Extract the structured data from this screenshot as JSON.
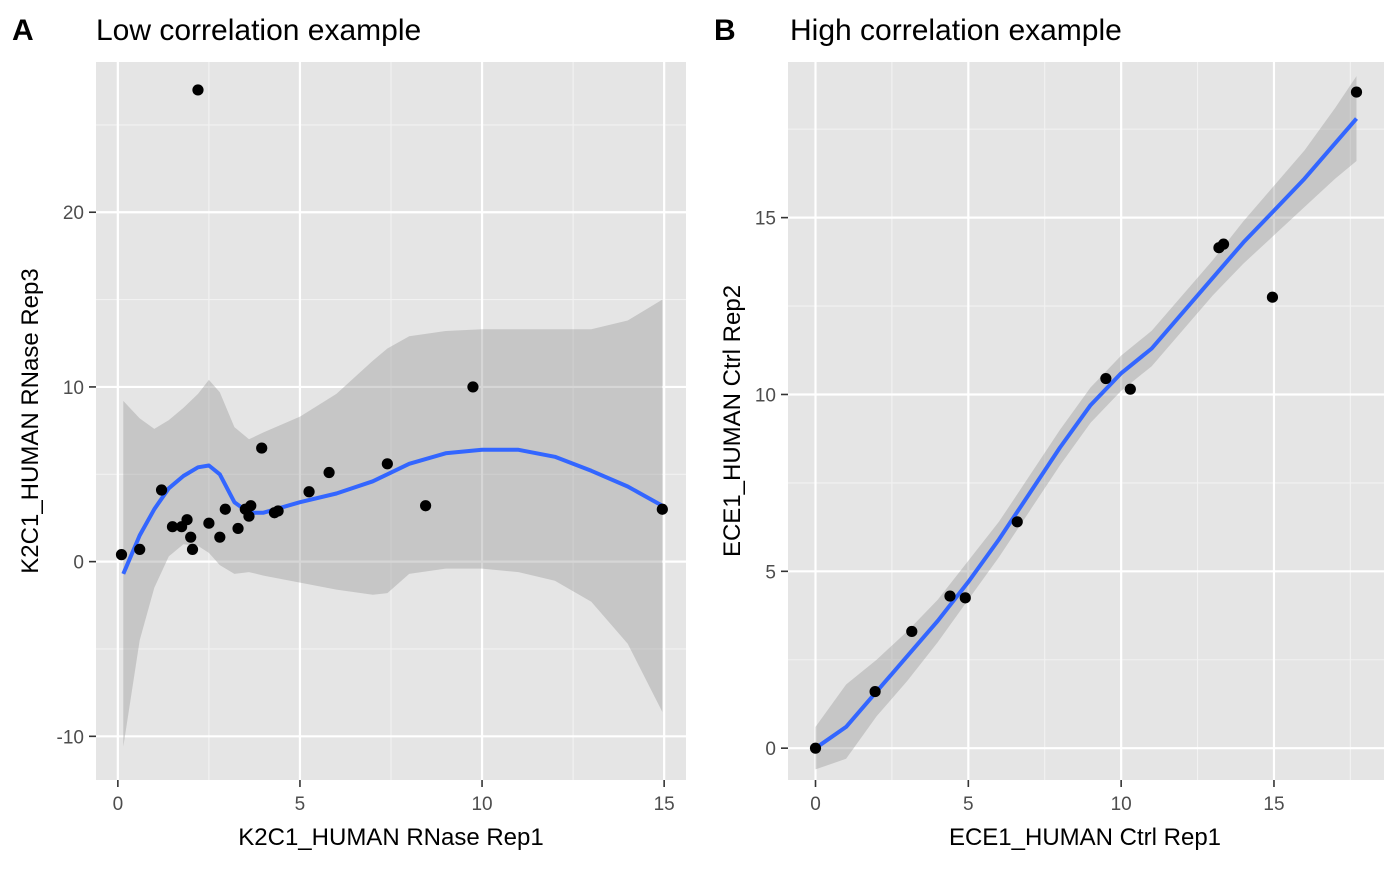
{
  "colors": {
    "panel_bg": "#e5e5e5",
    "grid_major": "#ffffff",
    "grid_minor": "#f2f2f2",
    "ribbon": "#999999",
    "smooth_line": "#3366ff",
    "point": "#000000",
    "tick_text": "#4d4d4d",
    "text": "#000000"
  },
  "chart_data": [
    {
      "type": "scatter",
      "panel_tag": "A",
      "title": "Low correlation example",
      "xlabel": "K2C1_HUMAN RNase Rep1",
      "ylabel": "K2C1_HUMAN RNase Rep3",
      "xlim": [
        -0.6,
        15.6
      ],
      "ylim": [
        -12.5,
        28.6
      ],
      "x_ticks": [
        0,
        5,
        10,
        15
      ],
      "x_tick_labels": [
        "0",
        "5",
        "10",
        "15"
      ],
      "y_ticks": [
        -10,
        0,
        10,
        20
      ],
      "y_tick_labels": [
        "-10",
        "0",
        "10",
        "20"
      ],
      "grid": true,
      "points": [
        {
          "x": 0.1,
          "y": 0.4
        },
        {
          "x": 0.6,
          "y": 0.7
        },
        {
          "x": 1.2,
          "y": 4.1
        },
        {
          "x": 1.5,
          "y": 2.0
        },
        {
          "x": 1.75,
          "y": 2.0
        },
        {
          "x": 1.9,
          "y": 2.4
        },
        {
          "x": 2.0,
          "y": 1.4
        },
        {
          "x": 2.05,
          "y": 0.7
        },
        {
          "x": 2.2,
          "y": 27.0
        },
        {
          "x": 2.5,
          "y": 2.2
        },
        {
          "x": 2.8,
          "y": 1.4
        },
        {
          "x": 2.95,
          "y": 3.0
        },
        {
          "x": 3.3,
          "y": 1.9
        },
        {
          "x": 3.5,
          "y": 3.0
        },
        {
          "x": 3.6,
          "y": 2.6
        },
        {
          "x": 3.65,
          "y": 3.2
        },
        {
          "x": 3.95,
          "y": 6.5
        },
        {
          "x": 4.3,
          "y": 2.8
        },
        {
          "x": 4.4,
          "y": 2.9
        },
        {
          "x": 5.25,
          "y": 4.0
        },
        {
          "x": 5.8,
          "y": 5.1
        },
        {
          "x": 7.4,
          "y": 5.6
        },
        {
          "x": 8.45,
          "y": 3.2
        },
        {
          "x": 9.75,
          "y": 10.0
        },
        {
          "x": 14.95,
          "y": 3.0
        }
      ],
      "smooth": [
        {
          "x": 0.15,
          "y": -0.7,
          "ymin": -10.6,
          "ymax": 9.2
        },
        {
          "x": 0.6,
          "y": 1.5,
          "ymin": -4.5,
          "ymax": 8.2
        },
        {
          "x": 1.0,
          "y": 3.0,
          "ymin": -1.5,
          "ymax": 7.6
        },
        {
          "x": 1.4,
          "y": 4.2,
          "ymin": 0.3,
          "ymax": 8.1
        },
        {
          "x": 1.8,
          "y": 4.9,
          "ymin": 1.0,
          "ymax": 8.8
        },
        {
          "x": 2.2,
          "y": 5.4,
          "ymin": 0.9,
          "ymax": 9.6
        },
        {
          "x": 2.5,
          "y": 5.5,
          "ymin": 0.5,
          "ymax": 10.4
        },
        {
          "x": 2.8,
          "y": 5.0,
          "ymin": -0.2,
          "ymax": 9.7
        },
        {
          "x": 3.2,
          "y": 3.4,
          "ymin": -0.7,
          "ymax": 7.7
        },
        {
          "x": 3.6,
          "y": 2.8,
          "ymin": -0.6,
          "ymax": 7.0
        },
        {
          "x": 4.0,
          "y": 2.8,
          "ymin": -0.8,
          "ymax": 7.4
        },
        {
          "x": 5.0,
          "y": 3.4,
          "ymin": -1.2,
          "ymax": 8.3
        },
        {
          "x": 6.0,
          "y": 3.9,
          "ymin": -1.6,
          "ymax": 9.6
        },
        {
          "x": 7.0,
          "y": 4.6,
          "ymin": -1.9,
          "ymax": 11.5
        },
        {
          "x": 7.4,
          "y": 5.0,
          "ymin": -1.8,
          "ymax": 12.2
        },
        {
          "x": 8.0,
          "y": 5.6,
          "ymin": -0.7,
          "ymax": 12.9
        },
        {
          "x": 9.0,
          "y": 6.2,
          "ymin": -0.4,
          "ymax": 13.2
        },
        {
          "x": 10.0,
          "y": 6.4,
          "ymin": -0.4,
          "ymax": 13.3
        },
        {
          "x": 11.0,
          "y": 6.4,
          "ymin": -0.6,
          "ymax": 13.3
        },
        {
          "x": 12.0,
          "y": 6.0,
          "ymin": -1.1,
          "ymax": 13.3
        },
        {
          "x": 13.0,
          "y": 5.2,
          "ymin": -2.3,
          "ymax": 13.3
        },
        {
          "x": 14.0,
          "y": 4.3,
          "ymin": -4.7,
          "ymax": 13.8
        },
        {
          "x": 14.95,
          "y": 3.2,
          "ymin": -8.6,
          "ymax": 15.0
        }
      ]
    },
    {
      "type": "scatter",
      "panel_tag": "B",
      "title": "High correlation example",
      "xlabel": "ECE1_HUMAN Ctrl Rep1",
      "ylabel": "ECE1_HUMAN Ctrl Rep2",
      "xlim": [
        -0.9,
        18.6
      ],
      "ylim": [
        -0.9,
        19.4
      ],
      "x_ticks": [
        0,
        5,
        10,
        15
      ],
      "x_tick_labels": [
        "0",
        "5",
        "10",
        "15"
      ],
      "y_ticks": [
        0,
        5,
        10,
        15
      ],
      "y_tick_labels": [
        "0",
        "5",
        "10",
        "15"
      ],
      "grid": true,
      "points": [
        {
          "x": 0.0,
          "y": 0.0
        },
        {
          "x": 1.95,
          "y": 1.6
        },
        {
          "x": 3.15,
          "y": 3.3
        },
        {
          "x": 4.4,
          "y": 4.3
        },
        {
          "x": 4.9,
          "y": 4.25
        },
        {
          "x": 6.6,
          "y": 6.4
        },
        {
          "x": 9.5,
          "y": 10.45
        },
        {
          "x": 10.3,
          "y": 10.15
        },
        {
          "x": 13.2,
          "y": 14.15
        },
        {
          "x": 13.35,
          "y": 14.25
        },
        {
          "x": 14.95,
          "y": 12.75
        },
        {
          "x": 17.7,
          "y": 18.55
        }
      ],
      "smooth": [
        {
          "x": 0.0,
          "y": 0.0,
          "ymin": -0.6,
          "ymax": 0.6
        },
        {
          "x": 1.0,
          "y": 0.6,
          "ymin": -0.3,
          "ymax": 1.8
        },
        {
          "x": 2.0,
          "y": 1.6,
          "ymin": 0.9,
          "ymax": 2.5
        },
        {
          "x": 3.0,
          "y": 2.6,
          "ymin": 1.9,
          "ymax": 3.3
        },
        {
          "x": 4.0,
          "y": 3.6,
          "ymin": 3.0,
          "ymax": 4.2
        },
        {
          "x": 5.0,
          "y": 4.7,
          "ymin": 4.2,
          "ymax": 5.3
        },
        {
          "x": 6.0,
          "y": 5.9,
          "ymin": 5.4,
          "ymax": 6.4
        },
        {
          "x": 7.0,
          "y": 7.2,
          "ymin": 6.7,
          "ymax": 7.7
        },
        {
          "x": 8.0,
          "y": 8.5,
          "ymin": 8.0,
          "ymax": 9.0
        },
        {
          "x": 9.0,
          "y": 9.7,
          "ymin": 9.2,
          "ymax": 10.2
        },
        {
          "x": 10.0,
          "y": 10.6,
          "ymin": 10.1,
          "ymax": 11.1
        },
        {
          "x": 11.0,
          "y": 11.3,
          "ymin": 10.8,
          "ymax": 11.8
        },
        {
          "x": 12.0,
          "y": 12.3,
          "ymin": 11.8,
          "ymax": 12.8
        },
        {
          "x": 13.0,
          "y": 13.3,
          "ymin": 12.8,
          "ymax": 13.8
        },
        {
          "x": 14.0,
          "y": 14.3,
          "ymin": 13.7,
          "ymax": 14.9
        },
        {
          "x": 15.0,
          "y": 15.2,
          "ymin": 14.5,
          "ymax": 15.9
        },
        {
          "x": 16.0,
          "y": 16.1,
          "ymin": 15.3,
          "ymax": 16.9
        },
        {
          "x": 17.0,
          "y": 17.1,
          "ymin": 16.1,
          "ymax": 18.1
        },
        {
          "x": 17.7,
          "y": 17.8,
          "ymin": 16.6,
          "ymax": 19.0
        }
      ]
    }
  ]
}
